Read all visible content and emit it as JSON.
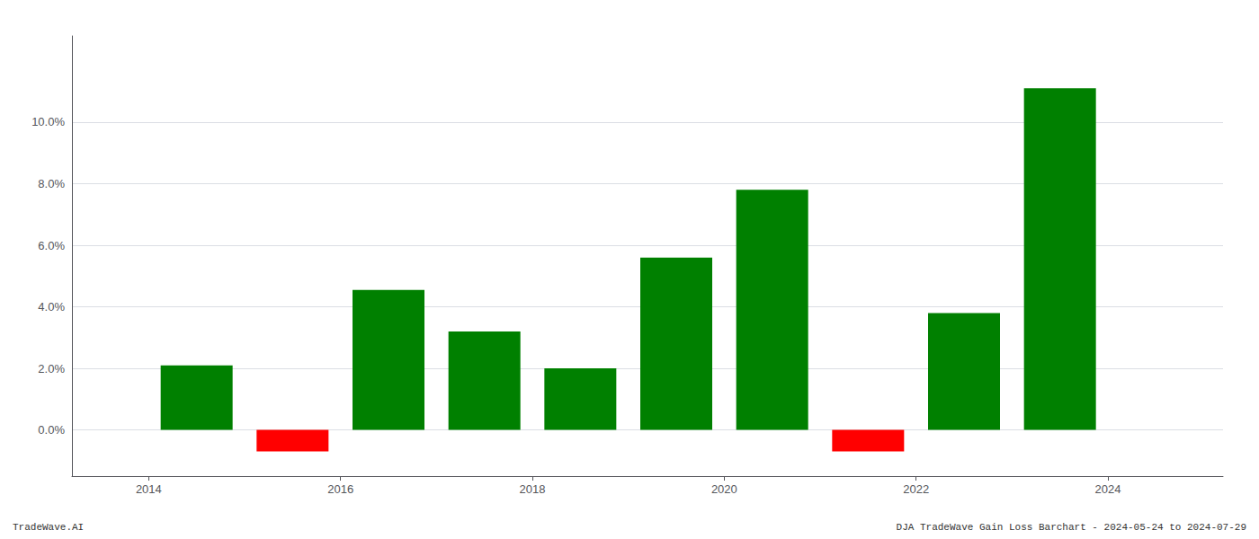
{
  "chart_data": {
    "type": "bar",
    "x": [
      2014.5,
      2015.5,
      2016.5,
      2017.5,
      2018.5,
      2019.5,
      2020.5,
      2021.5,
      2022.5,
      2023.5
    ],
    "values": [
      2.1,
      -0.7,
      4.55,
      3.2,
      2.0,
      5.6,
      7.8,
      -0.7,
      3.8,
      11.1
    ],
    "colors": [
      "#008000",
      "#ff0000",
      "#008000",
      "#008000",
      "#008000",
      "#008000",
      "#008000",
      "#ff0000",
      "#008000",
      "#008000"
    ],
    "xlim": [
      2013.2,
      2025.2
    ],
    "xticks": [
      2014,
      2016,
      2018,
      2020,
      2022,
      2024
    ],
    "ylim": [
      -1.5,
      12.8
    ],
    "yticks": [
      {
        "value": 0.0,
        "label": "0.0%"
      },
      {
        "value": 2.0,
        "label": "2.0%"
      },
      {
        "value": 4.0,
        "label": "4.0%"
      },
      {
        "value": 6.0,
        "label": "6.0%"
      },
      {
        "value": 8.0,
        "label": "8.0%"
      },
      {
        "value": 10.0,
        "label": "10.0%"
      }
    ],
    "grid": true,
    "annotations": [
      "TradeWave.AI",
      "DJA TradeWave Gain Loss Barchart - 2024-05-24 to 2024-07-29"
    ]
  }
}
